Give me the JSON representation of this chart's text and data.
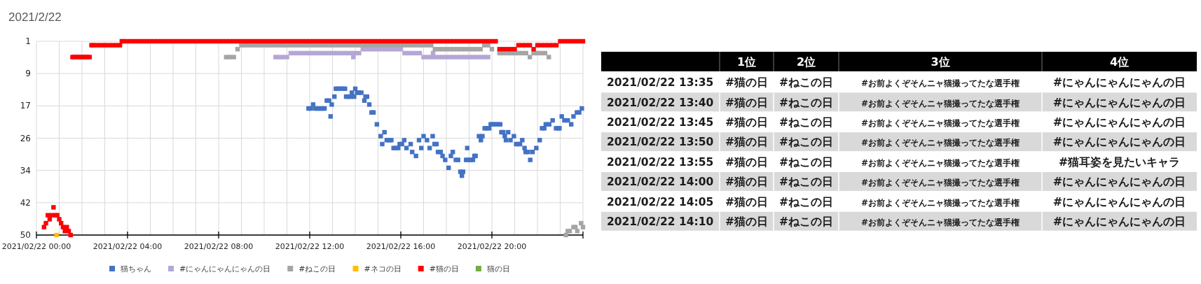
{
  "chart_data": [
    {
      "type": "scatter",
      "title": "2021/2/22",
      "xlim": [
        "2021-02-22T00:00",
        "2021-02-23T00:00"
      ],
      "ylim": [
        50,
        1
      ],
      "grid": true,
      "legend": "bottom",
      "marker": "square",
      "xticks": [
        {
          "value": "2021-02-22T00:00",
          "label": "2021/02/22 00:00"
        },
        {
          "value": "2021-02-22T01:00",
          "label": null
        },
        {
          "value": "2021-02-22T02:00",
          "label": null
        },
        {
          "value": "2021-02-22T03:00",
          "label": null
        },
        {
          "value": "2021-02-22T04:00",
          "label": "2021/02/22 04:00"
        },
        {
          "value": "2021-02-22T05:00",
          "label": null
        },
        {
          "value": "2021-02-22T06:00",
          "label": null
        },
        {
          "value": "2021-02-22T07:00",
          "label": null
        },
        {
          "value": "2021-02-22T08:00",
          "label": "2021/02/22 08:00"
        },
        {
          "value": "2021-02-22T09:00",
          "label": null
        },
        {
          "value": "2021-02-22T10:00",
          "label": null
        },
        {
          "value": "2021-02-22T11:00",
          "label": null
        },
        {
          "value": "2021-02-22T12:00",
          "label": "2021/02/22 12:00"
        },
        {
          "value": "2021-02-22T13:00",
          "label": null
        },
        {
          "value": "2021-02-22T14:00",
          "label": null
        },
        {
          "value": "2021-02-22T15:00",
          "label": null
        },
        {
          "value": "2021-02-22T16:00",
          "label": "2021/02/22 16:00"
        },
        {
          "value": "2021-02-22T17:00",
          "label": null
        },
        {
          "value": "2021-02-22T18:00",
          "label": null
        },
        {
          "value": "2021-02-22T19:00",
          "label": null
        },
        {
          "value": "2021-02-22T20:00",
          "label": "2021/02/22 20:00"
        },
        {
          "value": "2021-02-22T21:00",
          "label": null
        },
        {
          "value": "2021-02-22T22:00",
          "label": null
        },
        {
          "value": "2021-02-22T23:00",
          "label": null
        },
        {
          "value": "2021-02-23T00:00",
          "label": null
        }
      ],
      "yticks": [
        1,
        {
          "value": 9.167,
          "label": "9"
        },
        {
          "value": 17.333,
          "label": "17"
        },
        {
          "value": 25.5,
          "label": "26"
        },
        {
          "value": 33.667,
          "label": "34"
        },
        {
          "value": 41.833,
          "label": "42"
        },
        50
      ],
      "series": [
        {
          "name": "猫ちゃん",
          "color": "#4472c4",
          "type": "scatter",
          "x": [
            "2021-02-22T11:57",
            "2021-02-22T12:03",
            "2021-02-22T12:09",
            "2021-02-22T12:15",
            "2021-02-22T12:21",
            "2021-02-22T12:27",
            "2021-02-22T12:33",
            "2021-02-22T12:39",
            "2021-02-22T12:45",
            "2021-02-22T12:51",
            "2021-02-22T12:55",
            "2021-02-22T12:58",
            "2021-02-22T13:05",
            "2021-02-22T13:09",
            "2021-02-22T13:15",
            "2021-02-22T13:21",
            "2021-02-22T13:27",
            "2021-02-22T13:33",
            "2021-02-22T13:36",
            "2021-02-22T13:42",
            "2021-02-22T13:48",
            "2021-02-22T13:51",
            "2021-02-22T13:57",
            "2021-02-22T14:00",
            "2021-02-22T14:05",
            "2021-02-22T14:10",
            "2021-02-22T14:16",
            "2021-02-22T14:24",
            "2021-02-22T14:27",
            "2021-02-22T14:31",
            "2021-02-22T14:37",
            "2021-02-22T14:43",
            "2021-02-22T14:48",
            "2021-02-22T14:57",
            "2021-02-22T15:07",
            "2021-02-22T15:11",
            "2021-02-22T15:17",
            "2021-02-22T15:23",
            "2021-02-22T15:29",
            "2021-02-22T15:35",
            "2021-02-22T15:41",
            "2021-02-22T15:47",
            "2021-02-22T15:53",
            "2021-02-22T15:57",
            "2021-02-22T16:03",
            "2021-02-22T16:09",
            "2021-02-22T16:15",
            "2021-02-22T16:26",
            "2021-02-22T16:30",
            "2021-02-22T16:40",
            "2021-02-22T16:48",
            "2021-02-22T16:54",
            "2021-02-22T17:00",
            "2021-02-22T17:09",
            "2021-02-22T17:16",
            "2021-02-22T17:24",
            "2021-02-22T17:29",
            "2021-02-22T17:34",
            "2021-02-22T17:38",
            "2021-02-22T17:45",
            "2021-02-22T17:50",
            "2021-02-22T17:57",
            "2021-02-22T18:06",
            "2021-02-22T18:12",
            "2021-02-22T18:17",
            "2021-02-22T18:25",
            "2021-02-22T18:31",
            "2021-02-22T18:37",
            "2021-02-22T18:41",
            "2021-02-22T18:44",
            "2021-02-22T18:52",
            "2021-02-22T18:55",
            "2021-02-22T18:58",
            "2021-02-22T19:04",
            "2021-02-22T19:10",
            "2021-02-22T19:14",
            "2021-02-22T19:17",
            "2021-02-22T19:26",
            "2021-02-22T19:31",
            "2021-02-22T19:35",
            "2021-02-22T19:41",
            "2021-02-22T19:47",
            "2021-02-22T19:53",
            "2021-02-22T19:57",
            "2021-02-22T20:03",
            "2021-02-22T20:09",
            "2021-02-22T20:15",
            "2021-02-22T20:22",
            "2021-02-22T20:25",
            "2021-02-22T20:30",
            "2021-02-22T20:34",
            "2021-02-22T20:37",
            "2021-02-22T20:43",
            "2021-02-22T20:49",
            "2021-02-22T20:58",
            "2021-02-22T21:04",
            "2021-02-22T21:10",
            "2021-02-22T21:14",
            "2021-02-22T21:20",
            "2021-02-22T21:26",
            "2021-02-22T21:29",
            "2021-02-22T21:35",
            "2021-02-22T21:41",
            "2021-02-22T21:47",
            "2021-02-22T21:57",
            "2021-02-22T22:06",
            "2021-02-22T22:12",
            "2021-02-22T22:18",
            "2021-02-22T22:22",
            "2021-02-22T22:31",
            "2021-02-22T22:40",
            "2021-02-22T22:49",
            "2021-02-22T22:55",
            "2021-02-22T22:58",
            "2021-02-22T23:04",
            "2021-02-22T23:11",
            "2021-02-22T23:20",
            "2021-02-22T23:29",
            "2021-02-22T23:35",
            "2021-02-22T23:44",
            "2021-02-22T23:50",
            "2021-02-22T23:57"
          ],
          "values": [
            18,
            18,
            17,
            18,
            18,
            18,
            18,
            18,
            16,
            16,
            20,
            17,
            15,
            13,
            13,
            13,
            13,
            13,
            15,
            15,
            15,
            14,
            15,
            13,
            14,
            14,
            14,
            16,
            15,
            15,
            17,
            19,
            19,
            22,
            25,
            27,
            24,
            26,
            26,
            26,
            28,
            28,
            28,
            27,
            27,
            26,
            28,
            27,
            29,
            30,
            26,
            28,
            25,
            26,
            28,
            25,
            27,
            27,
            29,
            29,
            30,
            31,
            33,
            30,
            29,
            31,
            31,
            34,
            35,
            34,
            31,
            28,
            31,
            31,
            31,
            30,
            30,
            25,
            26,
            25,
            23,
            23,
            23,
            22,
            22,
            22,
            22,
            22,
            24,
            24,
            25,
            26,
            24,
            26,
            25,
            27,
            27,
            27,
            26,
            28,
            29,
            29,
            31,
            29,
            28,
            26,
            23,
            23,
            22,
            22,
            21,
            23,
            23,
            23,
            20,
            21,
            21,
            22,
            20,
            19,
            19,
            18
          ]
        },
        {
          "name": "#にゃんにゃんにゃんの日",
          "color": "#b4a7d6",
          "type": "scatter",
          "x": [
            "2021-02-22T10:30",
            "2021-02-22T10:40",
            "2021-02-22T10:50",
            "2021-02-22T11:00",
            "2021-02-22T11:10",
            "2021-02-22T11:20",
            "2021-02-22T11:30",
            "2021-02-22T11:40",
            "2021-02-22T11:50",
            "2021-02-22T12:00",
            "2021-02-22T12:10",
            "2021-02-22T12:20",
            "2021-02-22T12:30",
            "2021-02-22T12:40",
            "2021-02-22T12:50",
            "2021-02-22T13:00",
            "2021-02-22T13:10",
            "2021-02-22T13:20",
            "2021-02-22T13:30",
            "2021-02-22T13:40",
            "2021-02-22T13:50",
            "2021-02-22T13:55",
            "2021-02-22T14:00",
            "2021-02-22T14:10",
            "2021-02-22T14:20",
            "2021-02-22T14:30",
            "2021-02-22T14:40",
            "2021-02-22T14:50",
            "2021-02-22T15:00",
            "2021-02-22T15:10",
            "2021-02-22T15:20",
            "2021-02-22T15:30",
            "2021-02-22T15:40",
            "2021-02-22T15:50",
            "2021-02-22T16:00",
            "2021-02-22T16:10",
            "2021-02-22T16:20",
            "2021-02-22T16:30",
            "2021-02-22T16:40",
            "2021-02-22T16:50",
            "2021-02-22T17:00",
            "2021-02-22T17:10",
            "2021-02-22T17:20",
            "2021-02-22T17:25",
            "2021-02-22T17:30",
            "2021-02-22T17:40",
            "2021-02-22T17:50",
            "2021-02-22T18:00",
            "2021-02-22T18:10",
            "2021-02-22T18:20",
            "2021-02-22T18:30",
            "2021-02-22T18:40",
            "2021-02-22T18:50",
            "2021-02-22T19:00",
            "2021-02-22T19:10",
            "2021-02-22T19:20",
            "2021-02-22T19:30",
            "2021-02-22T19:40",
            "2021-02-22T19:50"
          ],
          "values": [
            5,
            5,
            5,
            5,
            4,
            4,
            4,
            4,
            4,
            4,
            4,
            4,
            4,
            4,
            4,
            4,
            4,
            4,
            4,
            4,
            4,
            5,
            4,
            4,
            3,
            3,
            3,
            3,
            3,
            3,
            3,
            3,
            3,
            3,
            3,
            4,
            4,
            4,
            4,
            4,
            5,
            5,
            5,
            4,
            5,
            5,
            5,
            5,
            5,
            5,
            5,
            5,
            5,
            5,
            5,
            5,
            5,
            5,
            5
          ]
        },
        {
          "name": "#ねこの日",
          "color": "#a5a5a5",
          "type": "scatter",
          "x": [
            "2021-02-22T08:20",
            "2021-02-22T08:30",
            "2021-02-22T08:40",
            "2021-02-22T08:50",
            "2021-02-22T09:00",
            "2021-02-22T09:10",
            "2021-02-22T09:20",
            "2021-02-22T09:30",
            "2021-02-22T09:40",
            "2021-02-22T09:50",
            "2021-02-22T10:00",
            "2021-02-22T10:10",
            "2021-02-22T10:20",
            "2021-02-22T10:30",
            "2021-02-22T10:40",
            "2021-02-22T10:50",
            "2021-02-22T11:00",
            "2021-02-22T11:10",
            "2021-02-22T11:20",
            "2021-02-22T11:30",
            "2021-02-22T11:40",
            "2021-02-22T11:50",
            "2021-02-22T12:00",
            "2021-02-22T12:10",
            "2021-02-22T12:20",
            "2021-02-22T12:30",
            "2021-02-22T12:40",
            "2021-02-22T12:50",
            "2021-02-22T13:00",
            "2021-02-22T13:10",
            "2021-02-22T13:20",
            "2021-02-22T13:30",
            "2021-02-22T13:40",
            "2021-02-22T13:50",
            "2021-02-22T14:00",
            "2021-02-22T14:10",
            "2021-02-22T14:20",
            "2021-02-22T14:30",
            "2021-02-22T14:40",
            "2021-02-22T14:50",
            "2021-02-22T15:00",
            "2021-02-22T15:10",
            "2021-02-22T15:20",
            "2021-02-22T15:30",
            "2021-02-22T15:40",
            "2021-02-22T15:50",
            "2021-02-22T16:00",
            "2021-02-22T16:10",
            "2021-02-22T16:20",
            "2021-02-22T16:30",
            "2021-02-22T16:40",
            "2021-02-22T16:50",
            "2021-02-22T17:00",
            "2021-02-22T17:10",
            "2021-02-22T17:20",
            "2021-02-22T17:30",
            "2021-02-22T17:40",
            "2021-02-22T17:50",
            "2021-02-22T18:00",
            "2021-02-22T18:10",
            "2021-02-22T18:20",
            "2021-02-22T18:30",
            "2021-02-22T18:40",
            "2021-02-22T18:50",
            "2021-02-22T19:00",
            "2021-02-22T19:10",
            "2021-02-22T19:20",
            "2021-02-22T19:30",
            "2021-02-22T19:40",
            "2021-02-22T19:50",
            "2021-02-22T20:00",
            "2021-02-22T20:20",
            "2021-02-22T20:30",
            "2021-02-22T20:40",
            "2021-02-22T20:50",
            "2021-02-22T21:00",
            "2021-02-22T21:10",
            "2021-02-22T21:20",
            "2021-02-22T21:30",
            "2021-02-22T21:40",
            "2021-02-22T21:50",
            "2021-02-22T22:00",
            "2021-02-22T22:10",
            "2021-02-22T22:20",
            "2021-02-22T22:30",
            "2021-02-22T23:15",
            "2021-02-22T23:20",
            "2021-02-22T23:25",
            "2021-02-22T23:35",
            "2021-02-22T23:40",
            "2021-02-22T23:45",
            "2021-02-22T23:55",
            "2021-02-23T00:00"
          ],
          "values": [
            5,
            5,
            5,
            3,
            2,
            2,
            2,
            2,
            2,
            2,
            2,
            2,
            2,
            2,
            2,
            2,
            2,
            2,
            2,
            2,
            2,
            2,
            2,
            2,
            2,
            2,
            2,
            2,
            2,
            2,
            2,
            2,
            2,
            2,
            2,
            2,
            2,
            2,
            2,
            2,
            2,
            2,
            2,
            2,
            2,
            2,
            2,
            2,
            2,
            2,
            2,
            2,
            2,
            2,
            2,
            3,
            3,
            3,
            3,
            3,
            3,
            3,
            3,
            3,
            3,
            3,
            3,
            3,
            2,
            2,
            3,
            4,
            4,
            4,
            4,
            4,
            4,
            4,
            4,
            5,
            4,
            4,
            4,
            4,
            5,
            50,
            49,
            49,
            48,
            48,
            49,
            47,
            48
          ]
        },
        {
          "name": "#ネコの日",
          "color": "#ffc000",
          "type": "scatter",
          "x": [
            "2021-02-22T00:53"
          ],
          "values": [
            50
          ]
        },
        {
          "name": "#猫の日",
          "color": "#ff0000",
          "type": "scatter",
          "x": [
            "2021-02-22T00:20",
            "2021-02-22T00:25",
            "2021-02-22T00:30",
            "2021-02-22T00:35",
            "2021-02-22T00:40",
            "2021-02-22T00:45",
            "2021-02-22T00:50",
            "2021-02-22T00:55",
            "2021-02-22T01:00",
            "2021-02-22T01:05",
            "2021-02-22T01:10",
            "2021-02-22T01:15",
            "2021-02-22T01:20",
            "2021-02-22T01:25",
            "2021-02-22T01:30",
            "2021-02-22T01:35",
            "2021-02-22T01:40",
            "2021-02-22T01:45",
            "2021-02-22T01:50",
            "2021-02-22T01:55",
            "2021-02-22T02:00",
            "2021-02-22T02:05",
            "2021-02-22T02:10",
            "2021-02-22T02:15",
            "2021-02-22T02:20",
            "2021-02-22T02:25",
            "2021-02-22T02:30",
            "2021-02-22T02:40",
            "2021-02-22T02:50",
            "2021-02-22T03:00",
            "2021-02-22T03:10",
            "2021-02-22T03:20",
            "2021-02-22T03:30",
            "2021-02-22T03:40",
            "2021-02-22T03:45",
            "2021-02-22T03:50",
            "2021-02-22T04:00",
            "2021-02-22T04:10",
            "2021-02-22T04:20",
            "2021-02-22T04:30",
            "2021-02-22T04:40",
            "2021-02-22T04:50",
            "2021-02-22T05:00",
            "2021-02-22T05:10",
            "2021-02-22T05:20",
            "2021-02-22T05:30",
            "2021-02-22T05:40",
            "2021-02-22T05:50",
            "2021-02-22T06:00",
            "2021-02-22T06:10",
            "2021-02-22T06:20",
            "2021-02-22T06:30",
            "2021-02-22T06:40",
            "2021-02-22T06:50",
            "2021-02-22T07:00",
            "2021-02-22T07:10",
            "2021-02-22T07:20",
            "2021-02-22T07:30",
            "2021-02-22T07:40",
            "2021-02-22T07:50",
            "2021-02-22T08:00",
            "2021-02-22T08:10",
            "2021-02-22T08:20",
            "2021-02-22T08:30",
            "2021-02-22T08:40",
            "2021-02-22T08:50",
            "2021-02-22T09:00",
            "2021-02-22T09:10",
            "2021-02-22T09:20",
            "2021-02-22T09:30",
            "2021-02-22T09:40",
            "2021-02-22T09:50",
            "2021-02-22T10:00",
            "2021-02-22T10:10",
            "2021-02-22T10:20",
            "2021-02-22T10:30",
            "2021-02-22T10:40",
            "2021-02-22T10:50",
            "2021-02-22T11:00",
            "2021-02-22T11:10",
            "2021-02-22T11:20",
            "2021-02-22T11:30",
            "2021-02-22T11:40",
            "2021-02-22T11:50",
            "2021-02-22T12:00",
            "2021-02-22T12:10",
            "2021-02-22T12:20",
            "2021-02-22T12:30",
            "2021-02-22T12:40",
            "2021-02-22T12:50",
            "2021-02-22T13:00",
            "2021-02-22T13:10",
            "2021-02-22T13:20",
            "2021-02-22T13:30",
            "2021-02-22T13:40",
            "2021-02-22T13:50",
            "2021-02-22T14:00",
            "2021-02-22T14:10",
            "2021-02-22T14:20",
            "2021-02-22T14:30",
            "2021-02-22T14:40",
            "2021-02-22T14:50",
            "2021-02-22T15:00",
            "2021-02-22T15:10",
            "2021-02-22T15:20",
            "2021-02-22T15:30",
            "2021-02-22T15:40",
            "2021-02-22T15:50",
            "2021-02-22T16:00",
            "2021-02-22T16:10",
            "2021-02-22T16:20",
            "2021-02-22T16:30",
            "2021-02-22T16:40",
            "2021-02-22T16:50",
            "2021-02-22T17:00",
            "2021-02-22T17:10",
            "2021-02-22T17:20",
            "2021-02-22T17:30",
            "2021-02-22T17:40",
            "2021-02-22T17:50",
            "2021-02-22T18:00",
            "2021-02-22T18:10",
            "2021-02-22T18:20",
            "2021-02-22T18:30",
            "2021-02-22T18:40",
            "2021-02-22T18:50",
            "2021-02-22T19:00",
            "2021-02-22T19:10",
            "2021-02-22T19:20",
            "2021-02-22T19:30",
            "2021-02-22T19:40",
            "2021-02-22T19:50",
            "2021-02-22T20:00",
            "2021-02-22T20:10",
            "2021-02-22T20:20",
            "2021-02-22T20:30",
            "2021-02-22T20:40",
            "2021-02-22T20:50",
            "2021-02-22T21:00",
            "2021-02-22T21:10",
            "2021-02-22T21:20",
            "2021-02-22T21:30",
            "2021-02-22T21:40",
            "2021-02-22T21:50",
            "2021-02-22T22:00",
            "2021-02-22T22:10",
            "2021-02-22T22:20",
            "2021-02-22T22:30",
            "2021-02-22T22:40",
            "2021-02-22T22:50",
            "2021-02-22T23:00",
            "2021-02-22T23:10",
            "2021-02-22T23:20",
            "2021-02-22T23:30",
            "2021-02-22T23:40",
            "2021-02-22T23:50",
            "2021-02-23T00:00"
          ],
          "values": [
            48,
            47,
            45,
            46,
            45,
            43,
            45,
            45,
            46,
            47,
            48,
            49,
            48,
            49,
            50,
            5,
            5,
            5,
            5,
            5,
            5,
            5,
            5,
            5,
            5,
            2,
            2,
            2,
            2,
            2,
            2,
            2,
            2,
            2,
            1,
            1,
            1,
            1,
            1,
            1,
            1,
            1,
            1,
            1,
            1,
            1,
            1,
            1,
            1,
            1,
            1,
            1,
            1,
            1,
            1,
            1,
            1,
            1,
            1,
            1,
            1,
            1,
            1,
            1,
            1,
            1,
            1,
            1,
            1,
            1,
            1,
            1,
            1,
            1,
            1,
            1,
            1,
            1,
            1,
            1,
            1,
            1,
            1,
            1,
            1,
            1,
            1,
            1,
            1,
            1,
            1,
            1,
            1,
            1,
            1,
            1,
            1,
            1,
            1,
            1,
            1,
            1,
            1,
            1,
            1,
            1,
            1,
            1,
            1,
            1,
            1,
            1,
            1,
            1,
            1,
            1,
            1,
            1,
            1,
            1,
            1,
            1,
            1,
            1,
            1,
            1,
            1,
            1,
            1,
            1,
            1,
            1,
            1,
            1,
            3,
            3,
            3,
            3,
            3,
            2,
            2,
            2,
            2,
            3,
            2,
            2,
            2,
            2,
            2,
            2,
            1,
            1,
            1,
            1,
            1,
            1,
            1
          ]
        },
        {
          "name": "猫の日",
          "color": "#70ad47",
          "type": "scatter"
        }
      ]
    },
    {
      "type": "other",
      "categories": [
        "1位",
        "2位",
        "3位",
        "4位"
      ],
      "y_categories": [
        "2021/02/22 13:35",
        "2021/02/22 13:40",
        "2021/02/22 13:45",
        "2021/02/22 13:50",
        "2021/02/22 13:55",
        "2021/02/22 14:00",
        "2021/02/22 14:05",
        "2021/02/22 14:10"
      ],
      "cell_labels": [
        [
          "#猫の日",
          "#ねこの日",
          "#お前よくぞそんニャ猫撮ってたな選手権",
          "#にゃんにゃんにゃんの日"
        ],
        [
          "#猫の日",
          "#ねこの日",
          "#お前よくぞそんニャ猫撮ってたな選手権",
          "#にゃんにゃんにゃんの日"
        ],
        [
          "#猫の日",
          "#ねこの日",
          "#お前よくぞそんニャ猫撮ってたな選手権",
          "#にゃんにゃんにゃんの日"
        ],
        [
          "#猫の日",
          "#ねこの日",
          "#お前よくぞそんニャ猫撮ってたな選手権",
          "#にゃんにゃんにゃんの日"
        ],
        [
          "#猫の日",
          "#ねこの日",
          "#お前よくぞそんニャ猫撮ってたな選手権",
          "#猫耳姿を見たいキャラ"
        ],
        [
          "#猫の日",
          "#ねこの日",
          "#お前よくぞそんニャ猫撮ってたな選手権",
          "#にゃんにゃんにゃんの日"
        ],
        [
          "#猫の日",
          "#ねこの日",
          "#お前よくぞそんニャ猫撮ってたな選手権",
          "#にゃんにゃんにゃんの日"
        ],
        [
          "#猫の日",
          "#ねこの日",
          "#お前よくぞそんニャ猫撮ってたな選手権",
          "#にゃんにゃんにゃんの日"
        ]
      ]
    }
  ]
}
